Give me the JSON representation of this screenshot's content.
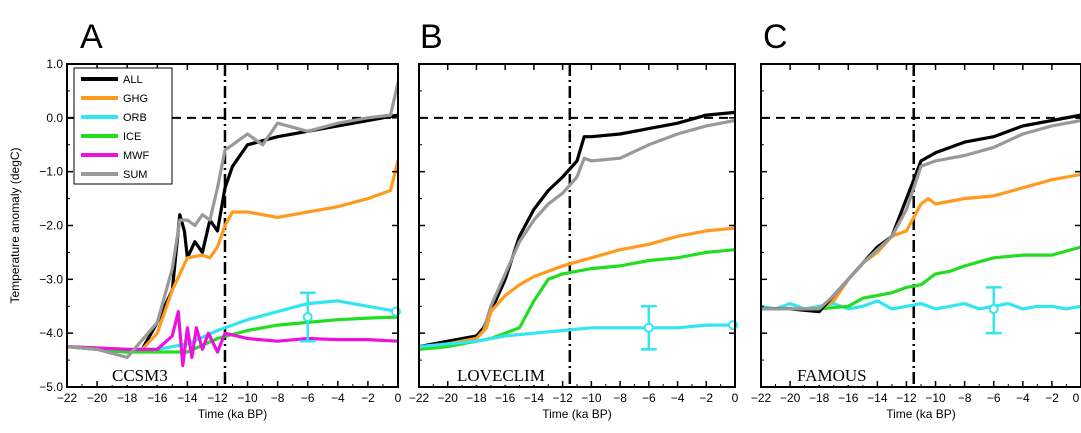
{
  "chart_data": [
    {
      "type": "line",
      "panel": "A",
      "model": "CCSM3",
      "xlabel": "Time (ka BP)",
      "ylabel": "Temperature anomaly (degC)",
      "xlim": [
        -22,
        0
      ],
      "ylim": [
        -5.0,
        1.0
      ],
      "x_ticks": [
        "−22",
        "−20",
        "−18",
        "−16",
        "−14",
        "−12",
        "−10",
        "−8",
        "−6",
        "−4",
        "−2",
        "0"
      ],
      "y_ticks": [
        "1.0",
        "0.0",
        "−1.0",
        "−2.0",
        "−3.0",
        "−4.0",
        "−5.0"
      ],
      "reference_lines": {
        "horizontal_y": 0.0,
        "vertical_x": -11.5
      },
      "legend": {
        "position": "top-left",
        "entries": [
          "ALL",
          "GHG",
          "ORB",
          "ICE",
          "MWF",
          "SUM"
        ]
      },
      "errorbar": {
        "x": -6,
        "y": -3.7,
        "low": -4.15,
        "high": -3.25,
        "color": "#33e5f0"
      },
      "series": [
        {
          "name": "ALL",
          "color": "#000000",
          "x": [
            -22,
            -20,
            -18,
            -17,
            -16,
            -15,
            -14.5,
            -14.2,
            -14,
            -13.5,
            -13,
            -12.5,
            -12,
            -11.5,
            -11,
            -10,
            -8,
            -6,
            -4,
            -2,
            0
          ],
          "y": [
            -4.25,
            -4.3,
            -4.35,
            -4.3,
            -3.8,
            -3.2,
            -1.8,
            -2.1,
            -2.6,
            -2.3,
            -2.5,
            -1.9,
            -2.1,
            -1.3,
            -0.9,
            -0.5,
            -0.35,
            -0.25,
            -0.15,
            -0.05,
            0.05
          ]
        },
        {
          "name": "GHG",
          "color": "#ff9a1f",
          "x": [
            -22,
            -20,
            -18,
            -17,
            -16,
            -15,
            -14,
            -13,
            -12.5,
            -12,
            -11.5,
            -11,
            -10,
            -8,
            -6,
            -4,
            -2,
            -0.5,
            0
          ],
          "y": [
            -4.25,
            -4.3,
            -4.35,
            -4.3,
            -4.0,
            -3.2,
            -2.6,
            -2.55,
            -2.6,
            -2.4,
            -2.0,
            -1.75,
            -1.75,
            -1.85,
            -1.75,
            -1.65,
            -1.5,
            -1.35,
            -0.8
          ]
        },
        {
          "name": "ORB",
          "color": "#33e5f0",
          "x": [
            -22,
            -18,
            -16,
            -14,
            -12,
            -10,
            -8,
            -6,
            -4,
            -2,
            0
          ],
          "y": [
            -4.25,
            -4.3,
            -4.3,
            -4.2,
            -3.95,
            -3.75,
            -3.6,
            -3.45,
            -3.4,
            -3.5,
            -3.6
          ]
        },
        {
          "name": "ICE",
          "color": "#22dd22",
          "x": [
            -22,
            -18,
            -16,
            -14,
            -12,
            -10,
            -8,
            -6,
            -4,
            -2,
            0
          ],
          "y": [
            -4.25,
            -4.35,
            -4.35,
            -4.35,
            -4.1,
            -3.95,
            -3.85,
            -3.8,
            -3.75,
            -3.72,
            -3.7
          ]
        },
        {
          "name": "MWF",
          "color": "#ee11dd",
          "x": [
            -22,
            -18,
            -16,
            -15,
            -14.6,
            -14.3,
            -14,
            -13.7,
            -13.4,
            -13,
            -12.6,
            -12,
            -11.5,
            -10,
            -8,
            -6,
            -4,
            -2,
            0
          ],
          "y": [
            -4.25,
            -4.3,
            -4.3,
            -4.05,
            -3.6,
            -4.6,
            -3.9,
            -4.45,
            -3.9,
            -4.3,
            -4.0,
            -4.35,
            -4.0,
            -4.1,
            -4.15,
            -4.1,
            -4.12,
            -4.12,
            -4.15
          ]
        },
        {
          "name": "SUM",
          "color": "#999999",
          "x": [
            -22,
            -20,
            -18,
            -16,
            -15,
            -14.5,
            -14,
            -13.5,
            -13,
            -12.5,
            -12,
            -11.5,
            -11,
            -10,
            -9,
            -8,
            -6,
            -4,
            -2,
            -0.5,
            0
          ],
          "y": [
            -4.25,
            -4.3,
            -4.45,
            -3.8,
            -2.8,
            -1.9,
            -1.9,
            -2.0,
            -1.8,
            -1.9,
            -1.3,
            -0.6,
            -0.5,
            -0.3,
            -0.5,
            -0.1,
            -0.25,
            -0.1,
            0.0,
            0.05,
            0.65
          ]
        }
      ]
    },
    {
      "type": "line",
      "panel": "B",
      "model": "LOVECLIM",
      "xlabel": "Time (ka BP)",
      "xlim": [
        -22,
        0
      ],
      "ylim": [
        -5.0,
        1.0
      ],
      "x_ticks": [
        "−22",
        "−20",
        "−18",
        "−16",
        "−14",
        "−12",
        "−10",
        "−8",
        "−6",
        "−4",
        "−2",
        "0"
      ],
      "reference_lines": {
        "horizontal_y": 0.0,
        "vertical_x": -11.5
      },
      "errorbar": {
        "x": -6,
        "y": -3.9,
        "low": -4.3,
        "high": -3.5,
        "color": "#33e5f0"
      },
      "series": [
        {
          "name": "ALL",
          "color": "#000000",
          "x": [
            -22,
            -20,
            -18,
            -17.5,
            -17,
            -16,
            -15,
            -14,
            -13,
            -12,
            -11,
            -10.5,
            -10,
            -8,
            -6,
            -4,
            -2,
            0
          ],
          "y": [
            -4.25,
            -4.15,
            -4.05,
            -3.9,
            -3.6,
            -3.0,
            -2.2,
            -1.7,
            -1.35,
            -1.1,
            -0.8,
            -0.35,
            -0.35,
            -0.3,
            -0.2,
            -0.1,
            0.05,
            0.1
          ]
        },
        {
          "name": "SUM",
          "color": "#999999",
          "x": [
            -22,
            -20,
            -18,
            -17.5,
            -17,
            -16,
            -15,
            -14,
            -13,
            -12,
            -11,
            -10.5,
            -10,
            -8,
            -6,
            -4,
            -2,
            0
          ],
          "y": [
            -4.3,
            -4.2,
            -4.1,
            -3.95,
            -3.5,
            -2.9,
            -2.3,
            -1.9,
            -1.6,
            -1.4,
            -1.1,
            -0.75,
            -0.8,
            -0.75,
            -0.5,
            -0.3,
            -0.15,
            -0.05
          ]
        },
        {
          "name": "GHG",
          "color": "#ff9a1f",
          "x": [
            -22,
            -20,
            -18,
            -17.3,
            -17,
            -16,
            -15,
            -14,
            -12,
            -10,
            -8,
            -6,
            -4,
            -2,
            0
          ],
          "y": [
            -4.3,
            -4.2,
            -4.1,
            -3.9,
            -3.6,
            -3.3,
            -3.1,
            -2.95,
            -2.75,
            -2.6,
            -2.45,
            -2.35,
            -2.2,
            -2.1,
            -2.05
          ]
        },
        {
          "name": "ICE",
          "color": "#22dd22",
          "x": [
            -22,
            -20,
            -18,
            -17,
            -16,
            -15,
            -14,
            -13,
            -12,
            -10,
            -8,
            -6,
            -4,
            -2,
            0
          ],
          "y": [
            -4.3,
            -4.25,
            -4.15,
            -4.1,
            -4.0,
            -3.9,
            -3.4,
            -3.0,
            -2.9,
            -2.8,
            -2.75,
            -2.65,
            -2.6,
            -2.5,
            -2.45
          ]
        },
        {
          "name": "ORB",
          "color": "#33e5f0",
          "x": [
            -22,
            -18,
            -16,
            -14,
            -12,
            -10,
            -8,
            -6,
            -4,
            -2,
            0
          ],
          "y": [
            -4.25,
            -4.15,
            -4.05,
            -4.0,
            -3.95,
            -3.9,
            -3.9,
            -3.9,
            -3.9,
            -3.85,
            -3.85
          ]
        }
      ]
    },
    {
      "type": "line",
      "panel": "C",
      "model": "FAMOUS",
      "xlabel": "Time (ka BP)",
      "xlim": [
        -22,
        0
      ],
      "ylim": [
        -5.0,
        1.0
      ],
      "x_ticks": [
        "−22",
        "−20",
        "−18",
        "−16",
        "−14",
        "−12",
        "−10",
        "−8",
        "−6",
        "−4",
        "−2",
        "0"
      ],
      "reference_lines": {
        "horizontal_y": 0.0,
        "vertical_x": -11.5
      },
      "errorbar": {
        "x": -6,
        "y": -3.55,
        "low": -4.0,
        "high": -3.15,
        "color": "#33e5f0"
      },
      "series": [
        {
          "name": "ORB",
          "color": "#33e5f0",
          "x": [
            -22,
            -21,
            -20,
            -19,
            -18,
            -17,
            -16,
            -15,
            -14,
            -13,
            -12,
            -11,
            -10,
            -9,
            -8,
            -7,
            -6,
            -5,
            -4,
            -3,
            -2,
            -1,
            0
          ],
          "y": [
            -3.5,
            -3.55,
            -3.45,
            -3.55,
            -3.5,
            -3.45,
            -3.55,
            -3.5,
            -3.4,
            -3.55,
            -3.5,
            -3.45,
            -3.55,
            -3.5,
            -3.45,
            -3.55,
            -3.5,
            -3.45,
            -3.55,
            -3.5,
            -3.5,
            -3.55,
            -3.5
          ]
        },
        {
          "name": "ICE",
          "color": "#22dd22",
          "x": [
            -22,
            -18,
            -16,
            -15,
            -14,
            -13,
            -12,
            -11,
            -10,
            -9,
            -8,
            -6,
            -4,
            -2,
            0
          ],
          "y": [
            -3.55,
            -3.55,
            -3.5,
            -3.35,
            -3.3,
            -3.25,
            -3.15,
            -3.1,
            -2.9,
            -2.85,
            -2.75,
            -2.6,
            -2.55,
            -2.55,
            -2.4
          ]
        },
        {
          "name": "GHG",
          "color": "#ff9a1f",
          "x": [
            -22,
            -18,
            -17,
            -16,
            -15,
            -14,
            -13,
            -12,
            -11,
            -10.5,
            -10,
            -8,
            -6,
            -4,
            -2,
            0
          ],
          "y": [
            -3.55,
            -3.55,
            -3.4,
            -3.0,
            -2.7,
            -2.5,
            -2.2,
            -2.1,
            -1.6,
            -1.5,
            -1.6,
            -1.5,
            -1.45,
            -1.3,
            -1.15,
            -1.05
          ]
        },
        {
          "name": "ALL",
          "color": "#000000",
          "x": [
            -22,
            -20,
            -18,
            -17,
            -16,
            -15,
            -14,
            -13,
            -12,
            -11,
            -10,
            -9,
            -8,
            -6,
            -4,
            -2,
            0
          ],
          "y": [
            -3.55,
            -3.55,
            -3.6,
            -3.3,
            -3.0,
            -2.7,
            -2.4,
            -2.2,
            -1.5,
            -0.8,
            -0.65,
            -0.55,
            -0.45,
            -0.35,
            -0.15,
            -0.05,
            0.05
          ]
        },
        {
          "name": "SUM",
          "color": "#999999",
          "x": [
            -22,
            -20,
            -18,
            -17,
            -16,
            -15,
            -14,
            -13,
            -12,
            -11,
            -10,
            -9,
            -8,
            -6,
            -4,
            -2,
            0
          ],
          "y": [
            -3.55,
            -3.55,
            -3.55,
            -3.3,
            -3.0,
            -2.7,
            -2.45,
            -2.2,
            -1.7,
            -0.9,
            -0.8,
            -0.75,
            -0.7,
            -0.55,
            -0.3,
            -0.15,
            -0.05
          ]
        }
      ]
    }
  ]
}
